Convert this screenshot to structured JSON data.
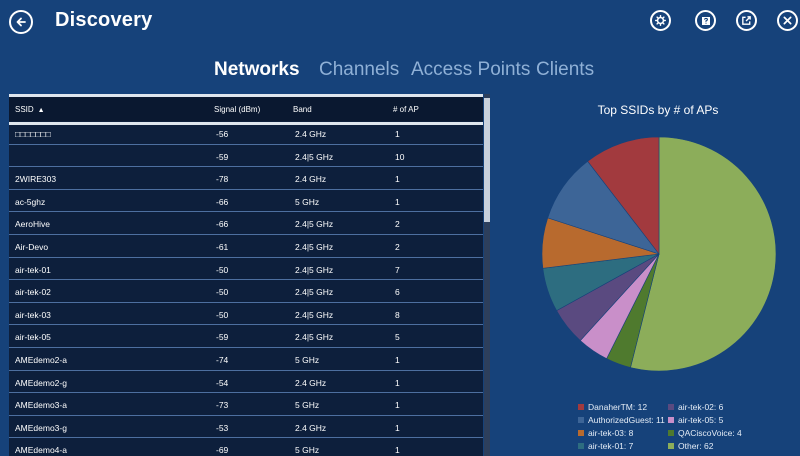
{
  "header": {
    "title": "Discovery",
    "icons": [
      "back-arrow-icon",
      "gear-icon",
      "help-icon",
      "share-icon",
      "close-icon"
    ]
  },
  "tabs": [
    {
      "label": "Networks",
      "active": true
    },
    {
      "label": "Channels",
      "active": false
    },
    {
      "label": "Access Points",
      "active": false
    },
    {
      "label": "Clients",
      "active": false
    }
  ],
  "table": {
    "columns": [
      "SSID",
      "Signal (dBm)",
      "Band",
      "# of AP"
    ],
    "sort_indicator": "▲",
    "rows": [
      {
        "ssid": "□□□□□□□",
        "signal": "-56",
        "band": "2.4 GHz",
        "aps": "1"
      },
      {
        "ssid": "",
        "signal": "-59",
        "band": "2.4|5 GHz",
        "aps": "10"
      },
      {
        "ssid": "2WIRE303",
        "signal": "-78",
        "band": "2.4 GHz",
        "aps": "1"
      },
      {
        "ssid": "ac-5ghz",
        "signal": "-66",
        "band": "5 GHz",
        "aps": "1"
      },
      {
        "ssid": "AeroHive",
        "signal": "-66",
        "band": "2.4|5 GHz",
        "aps": "2"
      },
      {
        "ssid": "Air-Devo",
        "signal": "-61",
        "band": "2.4|5 GHz",
        "aps": "2"
      },
      {
        "ssid": "air-tek-01",
        "signal": "-50",
        "band": "2.4|5 GHz",
        "aps": "7"
      },
      {
        "ssid": "air-tek-02",
        "signal": "-50",
        "band": "2.4|5 GHz",
        "aps": "6"
      },
      {
        "ssid": "air-tek-03",
        "signal": "-50",
        "band": "2.4|5 GHz",
        "aps": "8"
      },
      {
        "ssid": "air-tek-05",
        "signal": "-59",
        "band": "2.4|5 GHz",
        "aps": "5"
      },
      {
        "ssid": "AMEdemo2-a",
        "signal": "-74",
        "band": "5 GHz",
        "aps": "1"
      },
      {
        "ssid": "AMEdemo2-g",
        "signal": "-54",
        "band": "2.4 GHz",
        "aps": "1"
      },
      {
        "ssid": "AMEdemo3-a",
        "signal": "-73",
        "band": "5 GHz",
        "aps": "1"
      },
      {
        "ssid": "AMEdemo3-g",
        "signal": "-53",
        "band": "2.4 GHz",
        "aps": "1"
      },
      {
        "ssid": "AMEdemo4-a",
        "signal": "-69",
        "band": "5 GHz",
        "aps": "1"
      }
    ]
  },
  "chart": {
    "title": "Top SSIDs by # of APs"
  },
  "chart_data": {
    "type": "pie",
    "title": "Top SSIDs by # of APs",
    "slices": [
      {
        "label": "DanaherTM",
        "value": 12,
        "color": "#a23a3e"
      },
      {
        "label": "AuthorizedGuest",
        "value": 11,
        "color": "#3d6597"
      },
      {
        "label": "air-tek-03",
        "value": 8,
        "color": "#b86a2e"
      },
      {
        "label": "air-tek-01",
        "value": 7,
        "color": "#2d6d80"
      },
      {
        "label": "air-tek-02",
        "value": 6,
        "color": "#5a4a80"
      },
      {
        "label": "air-tek-05",
        "value": 5,
        "color": "#c98fc9"
      },
      {
        "label": "QACiscoVoice",
        "value": 4,
        "color": "#4f7a2e"
      },
      {
        "label": "Other",
        "value": 62,
        "color": "#8cad5a"
      }
    ],
    "legend": [
      {
        "text": "DanaherTM: 12",
        "color": "#a23a3e"
      },
      {
        "text": "air-tek-02: 6",
        "color": "#5a4a80"
      },
      {
        "text": "AuthorizedGuest: 11",
        "color": "#3d6597"
      },
      {
        "text": "air-tek-05: 5",
        "color": "#c98fc9"
      },
      {
        "text": "air-tek-03: 8",
        "color": "#b86a2e"
      },
      {
        "text": "QACiscoVoice: 4",
        "color": "#4f7a2e"
      },
      {
        "text": "air-tek-01: 7",
        "color": "#2d6d80"
      },
      {
        "text": "Other: 62",
        "color": "#8cad5a"
      }
    ]
  }
}
